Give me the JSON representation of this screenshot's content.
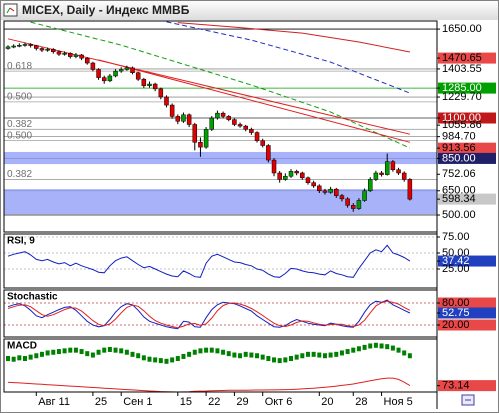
{
  "chart_data": [
    {
      "type": "candlestick",
      "title": "MICEX, Daily - Индекс ММВБ",
      "categories": [
        null,
        null,
        null,
        null,
        null,
        "Авг 11",
        null,
        null,
        null,
        null,
        null,
        null,
        null,
        null,
        null,
        "25",
        null,
        null,
        null,
        null,
        "Сен 1",
        null,
        null,
        null,
        null,
        null,
        null,
        null,
        null,
        null,
        "15",
        null,
        null,
        null,
        null,
        "22",
        null,
        null,
        null,
        null,
        "29",
        null,
        null,
        null,
        null,
        "Окт 6",
        null,
        null,
        null,
        null,
        null,
        null,
        null,
        null,
        null,
        "20",
        null,
        null,
        null,
        null,
        null,
        "28",
        null,
        null,
        null,
        null,
        "Ноя 5",
        null,
        null,
        null,
        null,
        null
      ],
      "open": [
        1530,
        1540,
        1545,
        1550,
        1555,
        1548,
        1530,
        1520,
        1525,
        1510,
        1495,
        1500,
        1480,
        1490,
        1470,
        1440,
        1400,
        1350,
        1330,
        1360,
        1390,
        1400,
        1410,
        1380,
        1340,
        1300,
        1310,
        1280,
        1230,
        1180,
        1110,
        1080,
        1120,
        1060,
        950,
        920,
        1030,
        1100,
        1130,
        1110,
        1090,
        1060,
        1050,
        1030,
        1010,
        960,
        930,
        840,
        760,
        720,
        740,
        770,
        760,
        730,
        700,
        680,
        650,
        640,
        660,
        620,
        600,
        560,
        540,
        590,
        650,
        720,
        760,
        750,
        830,
        780,
        760,
        720
      ],
      "high": [
        1550,
        1556,
        1562,
        1566,
        1563,
        1552,
        1538,
        1536,
        1532,
        1518,
        1512,
        1506,
        1502,
        1496,
        1476,
        1448,
        1408,
        1362,
        1372,
        1402,
        1414,
        1424,
        1418,
        1386,
        1348,
        1326,
        1318,
        1288,
        1240,
        1190,
        1122,
        1134,
        1128,
        1070,
        980,
        1044,
        1112,
        1146,
        1140,
        1118,
        1098,
        1072,
        1058,
        1040,
        1018,
        972,
        938,
        852,
        772,
        758,
        784,
        780,
        768,
        738,
        712,
        690,
        662,
        674,
        668,
        630,
        610,
        574,
        604,
        664,
        734,
        774,
        772,
        880,
        840,
        792,
        770,
        728
      ],
      "low": [
        1522,
        1532,
        1538,
        1541,
        1536,
        1518,
        1508,
        1510,
        1498,
        1484,
        1486,
        1468,
        1470,
        1458,
        1430,
        1388,
        1336,
        1312,
        1322,
        1352,
        1380,
        1392,
        1370,
        1330,
        1286,
        1288,
        1266,
        1216,
        1166,
        1096,
        1062,
        1070,
        1044,
        900,
        860,
        910,
        1020,
        1090,
        1098,
        1080,
        1050,
        1040,
        1018,
        996,
        948,
        918,
        826,
        740,
        700,
        712,
        730,
        746,
        718,
        688,
        668,
        636,
        626,
        632,
        606,
        584,
        546,
        520,
        532,
        582,
        642,
        710,
        738,
        744,
        768,
        748,
        706,
        590
      ],
      "close": [
        1540,
        1545,
        1550,
        1555,
        1548,
        1530,
        1520,
        1525,
        1510,
        1495,
        1500,
        1480,
        1490,
        1470,
        1440,
        1400,
        1350,
        1330,
        1360,
        1390,
        1400,
        1410,
        1380,
        1340,
        1300,
        1310,
        1280,
        1230,
        1180,
        1110,
        1080,
        1120,
        1060,
        950,
        920,
        1030,
        1100,
        1130,
        1110,
        1090,
        1060,
        1050,
        1030,
        1010,
        960,
        930,
        840,
        760,
        720,
        740,
        770,
        760,
        730,
        700,
        680,
        650,
        640,
        660,
        620,
        600,
        560,
        540,
        590,
        650,
        720,
        760,
        750,
        830,
        780,
        760,
        720,
        598.34
      ],
      "up_color": "#00a000",
      "down_color": "#e00000",
      "ylim": [
        395,
        1700
      ],
      "yticks": [
        {
          "value": 1650,
          "label": "1650.00"
        },
        {
          "value": 1470.65,
          "label": "1470.65"
        },
        {
          "value": 1403.55,
          "label": "1403.55"
        },
        {
          "value": 1285,
          "label": "1285.00"
        },
        {
          "value": 1229.7,
          "label": "1229.70"
        },
        {
          "value": 1100,
          "label": "1100.00"
        },
        {
          "value": 1055.86,
          "label": "1055.86"
        },
        {
          "value": 984.7,
          "label": "984.70"
        },
        {
          "value": 913.56,
          "label": "913.56"
        },
        {
          "value": 850,
          "label": "850.00"
        },
        {
          "value": 752.06,
          "label": "752.06"
        },
        {
          "value": 650,
          "label": "650.00"
        },
        {
          "value": 598.34,
          "label": "598.34"
        },
        {
          "value": 500,
          "label": "500.00"
        }
      ],
      "ytick_backgrounds": [
        null,
        "#e84848",
        null,
        "#00a000",
        null,
        "#c01818",
        null,
        null,
        "#e84848",
        "#202068",
        null,
        null,
        "#c8c8c8",
        null
      ],
      "ytick_line_colors": [
        "#000000",
        null,
        "#909090",
        "#00a000",
        "#909090",
        "#303030",
        null,
        "#909090",
        null,
        "#202068",
        null,
        "#202020",
        null,
        "#202020"
      ],
      "zones": [
        {
          "from": 815,
          "to": 890
        },
        {
          "from": 505,
          "to": 660
        }
      ],
      "zone_color": "#98a4f8",
      "levels": [
        {
          "label": "0.618",
          "value": 1390
        },
        {
          "label": "0.500",
          "value": 1200
        },
        {
          "label": "0.382",
          "value": 1030
        },
        {
          "label": "0.500",
          "value": 960
        },
        {
          "label": "0.382",
          "value": 720
        }
      ],
      "overlays": [
        {
          "color": "#d02020",
          "dash": false,
          "x": [
            30,
            40,
            52,
            62,
            71
          ],
          "values": [
            1690,
            1662,
            1625,
            1570,
            1508
          ]
        },
        {
          "color": "#2030c0",
          "dash": true,
          "x": [
            28,
            43,
            57,
            71
          ],
          "values": [
            1695,
            1582,
            1446,
            1254
          ]
        },
        {
          "color": "#10a010",
          "dash": true,
          "x": [
            4,
            20,
            43,
            57,
            71
          ],
          "values": [
            1693,
            1551,
            1304,
            1137,
            914
          ]
        },
        {
          "color": "#e02020",
          "dash": false,
          "x": [
            0,
            71
          ],
          "values": [
            1590,
            1000
          ]
        },
        {
          "color": "#e02020",
          "dash": false,
          "x": [
            16,
            71
          ],
          "values": [
            1460,
            950
          ]
        }
      ]
    },
    {
      "type": "line",
      "title": "RSI, 9",
      "ylim": [
        -4.7,
        79.7
      ],
      "yticks": [
        {
          "value": 75,
          "label": "75.00"
        },
        {
          "value": 50,
          "label": "50.00"
        },
        {
          "value": 37.42,
          "label": "37.42"
        },
        {
          "value": 25,
          "label": "25.00"
        }
      ],
      "ytick_backgrounds": [
        null,
        null,
        "#2040c0",
        null
      ],
      "ytick_line_colors": [
        "#b0b0b0",
        "#b0b0b0",
        null,
        "#b0b0b0"
      ],
      "series": [
        {
          "color": "#1020c0",
          "values": [
            45,
            48,
            50,
            52,
            47,
            40,
            38,
            40,
            36,
            33,
            35,
            30,
            34,
            30,
            27,
            24,
            20,
            19,
            30,
            38,
            42,
            44,
            38,
            32,
            27,
            29,
            25,
            21,
            17,
            14,
            13,
            22,
            18,
            13,
            12,
            34,
            45,
            48,
            44,
            40,
            36,
            35,
            32,
            30,
            25,
            23,
            17,
            13,
            12,
            18,
            26,
            25,
            22,
            20,
            19,
            17,
            16,
            22,
            18,
            16,
            13,
            12,
            26,
            38,
            50,
            55,
            52,
            62,
            50,
            47,
            43,
            37.42
          ]
        }
      ]
    },
    {
      "type": "line",
      "title": "Stochastic",
      "ylim": [
        -12.7,
        115.5
      ],
      "yticks": [
        {
          "value": 80,
          "label": "80.00"
        },
        {
          "value": 52.75,
          "label": "52.75"
        },
        {
          "value": 20,
          "label": "20.00"
        }
      ],
      "ytick_backgrounds": [
        "#e84848",
        "#2040c0",
        "#e84848"
      ],
      "ytick_line_colors": [
        "#c04040",
        null,
        "#c04040"
      ],
      "series": [
        {
          "color": "#1020c0",
          "values": [
            70,
            75,
            78,
            72,
            60,
            45,
            40,
            48,
            55,
            62,
            68,
            70,
            60,
            45,
            30,
            20,
            15,
            18,
            35,
            55,
            70,
            78,
            75,
            60,
            42,
            30,
            25,
            20,
            15,
            12,
            10,
            30,
            28,
            15,
            14,
            40,
            62,
            75,
            82,
            80,
            78,
            72,
            65,
            58,
            45,
            35,
            25,
            15,
            14,
            18,
            28,
            35,
            30,
            25,
            22,
            20,
            18,
            25,
            22,
            18,
            15,
            14,
            30,
            55,
            75,
            85,
            82,
            88,
            75,
            68,
            60,
            52.75
          ]
        },
        {
          "color": "#e02020",
          "values": [
            65,
            70,
            74,
            75,
            70,
            59,
            48,
            44,
            48,
            55,
            62,
            67,
            66,
            58,
            45,
            32,
            22,
            18,
            23,
            36,
            53,
            68,
            74,
            71,
            59,
            44,
            32,
            25,
            20,
            16,
            12,
            17,
            23,
            24,
            19,
            23,
            39,
            59,
            73,
            79,
            80,
            77,
            72,
            65,
            56,
            46,
            35,
            25,
            18,
            16,
            20,
            27,
            31,
            30,
            26,
            22,
            20,
            21,
            22,
            22,
            18,
            16,
            20,
            33,
            53,
            72,
            81,
            85,
            82,
            77,
            68,
            60
          ]
        }
      ]
    },
    {
      "type": "macd",
      "title": "MACD",
      "ylim": [
        64,
        140
      ],
      "yticks": [
        {
          "value": 73.14,
          "label": "73.14"
        }
      ],
      "ytick_backgrounds": [
        "#e84848"
      ],
      "ytick_line_colors": [
        null
      ],
      "series": [
        {
          "color": "#008000",
          "style": "marker",
          "values": [
            112,
            111,
            113,
            112,
            114,
            116,
            118,
            120,
            121,
            122,
            123,
            124,
            124,
            122,
            119,
            117,
            121,
            124,
            125,
            124,
            123,
            121,
            118,
            116,
            113,
            111,
            110,
            109,
            108,
            110,
            112,
            115,
            118,
            121,
            123,
            124,
            124,
            123,
            121,
            119,
            117,
            116,
            118,
            117,
            116,
            114,
            112,
            110,
            109,
            110,
            112,
            114,
            116,
            118,
            118,
            117,
            116,
            117,
            118,
            120,
            122,
            124,
            126,
            128,
            130,
            131,
            130,
            129,
            127,
            124,
            120,
            116
          ]
        },
        {
          "color": "#e02020",
          "style": "line",
          "values": [
            78,
            77.5,
            77,
            76.5,
            76,
            75.5,
            75,
            74.5,
            74,
            73.5,
            73,
            72.5,
            72,
            71.5,
            71,
            70.5,
            70,
            69.5,
            69,
            68.5,
            68,
            67.5,
            67,
            66.5,
            66,
            65.5,
            65,
            64.6,
            64.3,
            64.1,
            64,
            64.2,
            64.5,
            65,
            65.3,
            65.5,
            65.8,
            66,
            66.2,
            66.4,
            66.5,
            66.5,
            66.6,
            66.7,
            66.8,
            66.9,
            67,
            67,
            67.2,
            67.4,
            67.6,
            68,
            68.5,
            69,
            69.5,
            70,
            70.8,
            71.6,
            72.5,
            73.5,
            74.5,
            75.5,
            77,
            78.5,
            80,
            81.5,
            83,
            84,
            84,
            82,
            78,
            73.14
          ]
        }
      ]
    }
  ]
}
